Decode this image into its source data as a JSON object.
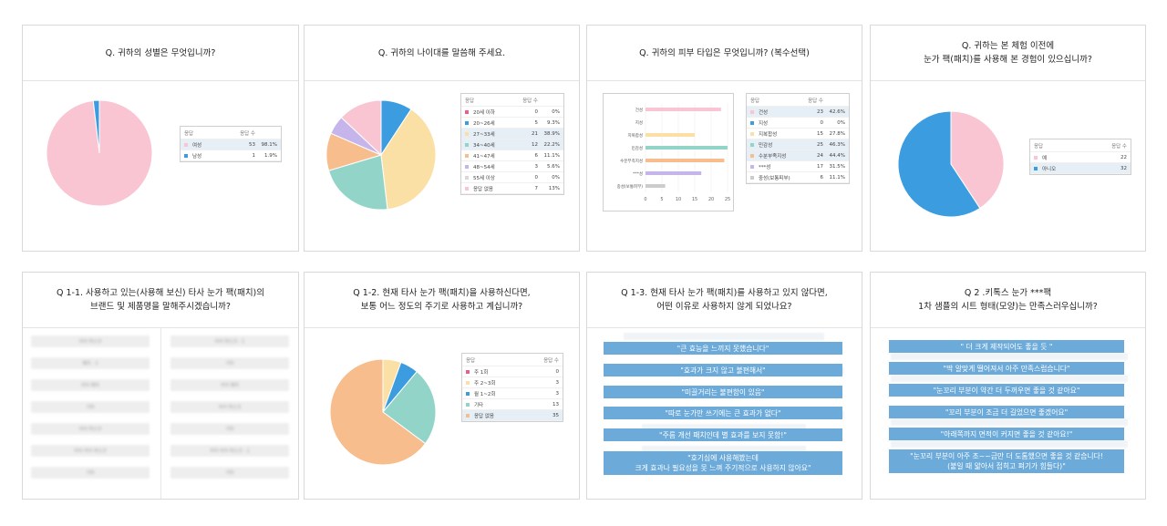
{
  "colors": {
    "pink": "#f9c5d3",
    "blue": "#3b9de0",
    "peach": "#f7bd8c",
    "yellow": "#fbe0a5",
    "teal": "#92d5c8",
    "lavender": "#c5b5ea",
    "barblue": "#6baad9",
    "highlight": "#e6eef6"
  },
  "table_header": {
    "response": "응답",
    "count": "응답 수"
  },
  "cards": {
    "gender": {
      "title": "Q. 귀하의 성별은 무엇입니까?",
      "chart_data": {
        "type": "pie",
        "title": "Q. 귀하의 성별은 무엇입니까?",
        "categories": [
          "여성",
          "남성"
        ],
        "values": [
          53,
          1
        ],
        "percents": [
          "98.1%",
          "1.9%"
        ],
        "colors": [
          "#f9c5d3",
          "#3b9de0"
        ],
        "highlight": [
          0
        ]
      }
    },
    "age": {
      "title": "Q. 귀하의 나이대를 말씀해 주세요.",
      "chart_data": {
        "type": "pie",
        "title": "Q. 귀하의 나이대를 말씀해 주세요.",
        "categories": [
          "20세 이하",
          "20~26세",
          "27~33세",
          "34~40세",
          "41~47세",
          "48~54세",
          "55세 이상",
          "응답 없음"
        ],
        "values": [
          0,
          5,
          21,
          12,
          6,
          3,
          0,
          7
        ],
        "percents": [
          "0%",
          "9.3%",
          "38.9%",
          "22.2%",
          "11.1%",
          "5.6%",
          "0%",
          "13%"
        ],
        "colors": [
          "#e95f8a",
          "#3b9de0",
          "#fbe0a5",
          "#92d5c8",
          "#f7bd8c",
          "#c5b5ea",
          "#d9d9d9",
          "#f9c5d3"
        ],
        "highlight": [
          2,
          3
        ]
      }
    },
    "skin": {
      "title": "Q. 귀하의 피부 타입은 무엇입니까? (복수선택)",
      "chart_data": {
        "type": "bar",
        "orientation": "horizontal",
        "title": "Q. 귀하의 피부 타입은 무엇입니까? (복수선택)",
        "categories": [
          "건성",
          "지성",
          "지복합성",
          "민감성",
          "수분부족지성",
          "***성",
          "중성(보통피부)"
        ],
        "values": [
          23,
          0,
          15,
          25,
          24,
          17,
          6
        ],
        "percents": [
          "42.6%",
          "0%",
          "27.8%",
          "46.3%",
          "44.4%",
          "31.5%",
          "11.1%"
        ],
        "colors": [
          "#f9c5d3",
          "#3b9de0",
          "#fbe0a5",
          "#92d5c8",
          "#f7bd8c",
          "#c5b5ea",
          "#cccccc"
        ],
        "xticks": [
          "0",
          "5",
          "10",
          "15",
          "20",
          "25"
        ],
        "xlim": [
          0,
          25
        ],
        "highlight": [
          0,
          3,
          4
        ]
      }
    },
    "experience": {
      "title": "Q. 귀하는 본 체험 이전에\n눈가 팩(패치)를 사용해 본 경험이 있으십니까?",
      "chart_data": {
        "type": "pie",
        "title": "Q. 귀하는 본 체험 이전에 눈가 팩(패치)를 사용해 본 경험이 있으십니까?",
        "categories": [
          "예",
          "아니오"
        ],
        "values": [
          22,
          32
        ],
        "colors": [
          "#f9c5d3",
          "#3b9de0"
        ],
        "highlight": [
          1
        ]
      }
    },
    "brand": {
      "title": "Q 1-1. 사용하고 있는(사용해 보신) 타사 눈가 팩(패치)의\n브랜드 및 제품명을 말해주시겠습니까?",
      "left_column": [
        "아이 마스크",
        "패치 - 1",
        "아이 패치",
        "기타",
        "아이 마스크",
        "아이 아이 마스크",
        "기타"
      ],
      "right_column": [
        "아이 마스크 - 1",
        "기타",
        "아이 패치",
        "아이 마스크",
        "기타",
        "아이 아이 마스크 - 1",
        "기타"
      ]
    },
    "frequency": {
      "title": "Q 1-2. 현재 타사 눈가 팩(패치)을 사용하신다면,\n보통 어느 정도의 주기로 사용하고 계십니까?",
      "chart_data": {
        "type": "pie",
        "title": "Q 1-2. 현재 타사 눈가 팩(패치)을 사용하신다면, 보통 어느 정도의 주기로 사용하고 계십니까?",
        "categories": [
          "주 1회",
          "주 2~3회",
          "월 1~2회",
          "기타",
          "응답 없음"
        ],
        "values": [
          0,
          3,
          3,
          13,
          35
        ],
        "colors": [
          "#e95f8a",
          "#fbe0a5",
          "#3b9de0",
          "#92d5c8",
          "#f7bd8c"
        ],
        "highlight": [
          4
        ]
      }
    },
    "reasons": {
      "title": "Q 1-3. 현재 타사 눈가 팩(패치)를 사용하고 있지 않다면,\n어떤 이유로 사용하지 않게 되었나요?",
      "quotes": [
        "\"큰 효능을 느끼지 못했습니다\"",
        "\"효과가 크지 않고 불편해서\"",
        "\"미끌거리는 불편함이 있음\"",
        "\"따로 눈가만 쓰기에는 큰 효과가 없다\"",
        "\"주름 개선 패치인데 별 효과를 보지 못함!\"",
        "\"호기심에 사용해봤는데\n크게 효과나 필요성을 못 느껴 주기적으로 사용하지 않아요\""
      ]
    },
    "satisfaction": {
      "title": "Q 2 .키톡스 눈가 ***팩\n1차 샘플의 시트 형태(모양)는 만족스러우십니까?",
      "quotes": [
        "\" 더 크게 제작되어도 좋을 듯 \"",
        "\"딱 알맞게 떨어져서 아주 만족스럽습니다\"",
        "\"눈꼬리 부분이 약간 더 두꺼우면 좋을 것 같아요\"",
        "\"꼬리 부분이 조금 더 길었으면 좋겠어요\"",
        "\"아래쪽까지 면적이 커지면 좋을 것 같아요!\"",
        "\"눈꼬리 부분이 아주 조~~금만 더 도톰했으면 좋을 것 같습니다!\n(붙일 때 얇아서 접히고 펴기가 힘들다)\""
      ]
    }
  }
}
